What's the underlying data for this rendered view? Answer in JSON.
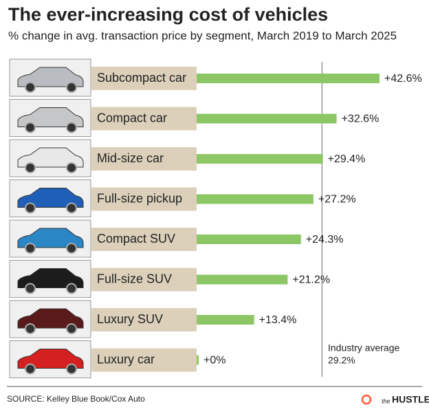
{
  "chart_data": {
    "type": "bar",
    "orientation": "horizontal",
    "title": "The ever-increasing cost of vehicles",
    "subtitle": "% change in avg. transaction price by segment, March 2019 to March 2025",
    "categories": [
      "Subcompact car",
      "Compact car",
      "Mid-size car",
      "Full-size pickup",
      "Compact SUV",
      "Full-size SUV",
      "Luxury SUV",
      "Luxury car"
    ],
    "values": [
      42.6,
      32.6,
      29.4,
      27.2,
      24.3,
      21.2,
      13.4,
      0
    ],
    "value_labels": [
      "+42.6%",
      "+32.6%",
      "+29.4%",
      "+27.2%",
      "+24.3%",
      "+21.2%",
      "+13.4%",
      "+0%"
    ],
    "color": "#8cc665",
    "reference_line": {
      "label": "Industry average",
      "value": 29.2,
      "value_label": "29.2%"
    },
    "source": "SOURCE: Kelley Blue Book/Cox Auto",
    "branding": {
      "prefix": "the",
      "name": "HUSTLE"
    }
  }
}
